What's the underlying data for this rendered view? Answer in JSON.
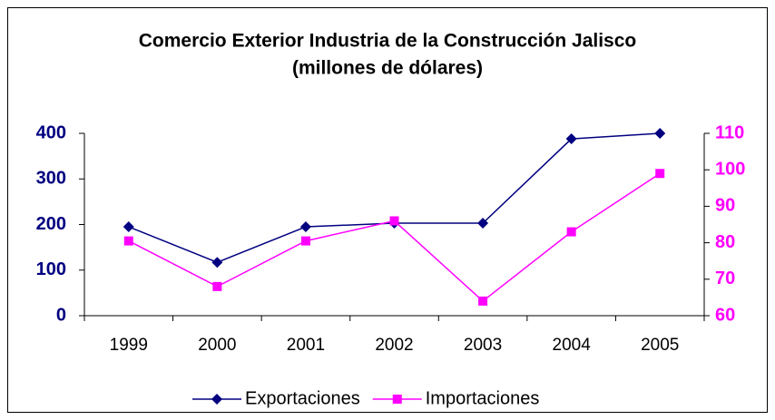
{
  "chart_data": {
    "type": "line",
    "title": "Comercio Exterior  Industria de la Construcción Jalisco",
    "subtitle": "(millones de dólares)",
    "categories": [
      "1999",
      "2000",
      "2001",
      "2002",
      "2003",
      "2004",
      "2005"
    ],
    "series": [
      {
        "name": "Exportaciones",
        "color": "#000080",
        "marker": "diamond",
        "values": [
          195,
          117,
          195,
          203,
          203,
          388,
          400
        ]
      },
      {
        "name": "Importaciones",
        "color": "#ff00ff",
        "marker": "square",
        "axis": "y2",
        "values": [
          80.5,
          68,
          80.5,
          86,
          64,
          83,
          99
        ]
      }
    ],
    "ylim": [
      0,
      400
    ],
    "yticks": [
      0,
      100,
      200,
      300,
      400
    ],
    "y2lim": [
      60,
      110
    ],
    "y2ticks": [
      60,
      70,
      80,
      90,
      100,
      110
    ],
    "grid": false,
    "legend": "bottom"
  }
}
